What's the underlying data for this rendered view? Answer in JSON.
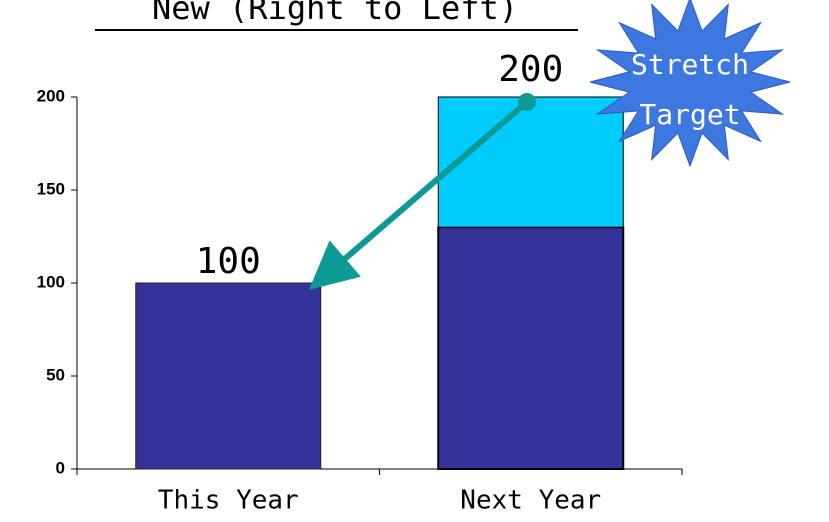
{
  "chart_data": {
    "type": "stacked_bar",
    "title": "New (Right to Left)",
    "categories": [
      "This Year",
      "Next Year"
    ],
    "series": [
      {
        "color": "#333399",
        "values": [
          100,
          130
        ]
      },
      {
        "color": "#00ccff",
        "values": [
          null,
          70
        ]
      }
    ],
    "total_labels": [
      "100",
      "200"
    ],
    "callout": [
      "Stretch",
      "Target"
    ],
    "ylim": [
      0,
      200
    ],
    "yticks": [
      0,
      50,
      100,
      150,
      200
    ]
  }
}
